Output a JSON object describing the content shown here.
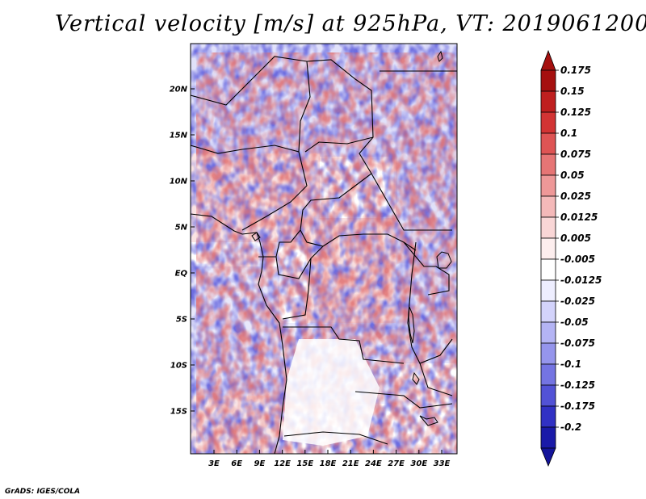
{
  "title": "Vertical velocity [m/s] at 925hPa, VT: 2019061200",
  "credit": "GrADS: IGES/COLA",
  "map": {
    "lon_range": [
      0,
      35
    ],
    "lat_range": [
      -20,
      25
    ],
    "lat_ticks": [
      {
        "value": 20,
        "label": "20N"
      },
      {
        "value": 15,
        "label": "15N"
      },
      {
        "value": 10,
        "label": "10N"
      },
      {
        "value": 5,
        "label": "5N"
      },
      {
        "value": 0,
        "label": "EQ"
      },
      {
        "value": -5,
        "label": "5S"
      },
      {
        "value": -10,
        "label": "10S"
      },
      {
        "value": -15,
        "label": "15S"
      }
    ],
    "lon_ticks": [
      {
        "value": 3,
        "label": "3E"
      },
      {
        "value": 6,
        "label": "6E"
      },
      {
        "value": 9,
        "label": "9E"
      },
      {
        "value": 12,
        "label": "12E"
      },
      {
        "value": 15,
        "label": "15E"
      },
      {
        "value": 18,
        "label": "18E"
      },
      {
        "value": 21,
        "label": "21E"
      },
      {
        "value": 24,
        "label": "24E"
      },
      {
        "value": 27,
        "label": "27E"
      },
      {
        "value": 30,
        "label": "30E"
      },
      {
        "value": 33,
        "label": "33E"
      }
    ]
  },
  "colorbar": {
    "levels": [
      {
        "label": "0.175",
        "color": "#a5100f"
      },
      {
        "label": "0.15",
        "color": "#bf1f1f"
      },
      {
        "label": "0.125",
        "color": "#d23434"
      },
      {
        "label": "0.1",
        "color": "#de5454"
      },
      {
        "label": "0.075",
        "color": "#e67575"
      },
      {
        "label": "0.05",
        "color": "#ee9898"
      },
      {
        "label": "0.025",
        "color": "#f4b9b9"
      },
      {
        "label": "0.0125",
        "color": "#f9d6d6"
      },
      {
        "label": "0.005",
        "color": "#fdeeee"
      },
      {
        "label": "-0.005",
        "color": "#ffffff"
      },
      {
        "label": "-0.0125",
        "color": "#eeeeff"
      },
      {
        "label": "-0.025",
        "color": "#d3d3fb"
      },
      {
        "label": "-0.05",
        "color": "#b4b4f4"
      },
      {
        "label": "-0.075",
        "color": "#9595ec"
      },
      {
        "label": "-0.1",
        "color": "#7474e2"
      },
      {
        "label": "-0.125",
        "color": "#5252d6"
      },
      {
        "label": "-0.175",
        "color": "#3131c4"
      },
      {
        "label": "-0.2",
        "color": "#1a1aa8"
      }
    ],
    "bottom_color": "#14149a"
  }
}
